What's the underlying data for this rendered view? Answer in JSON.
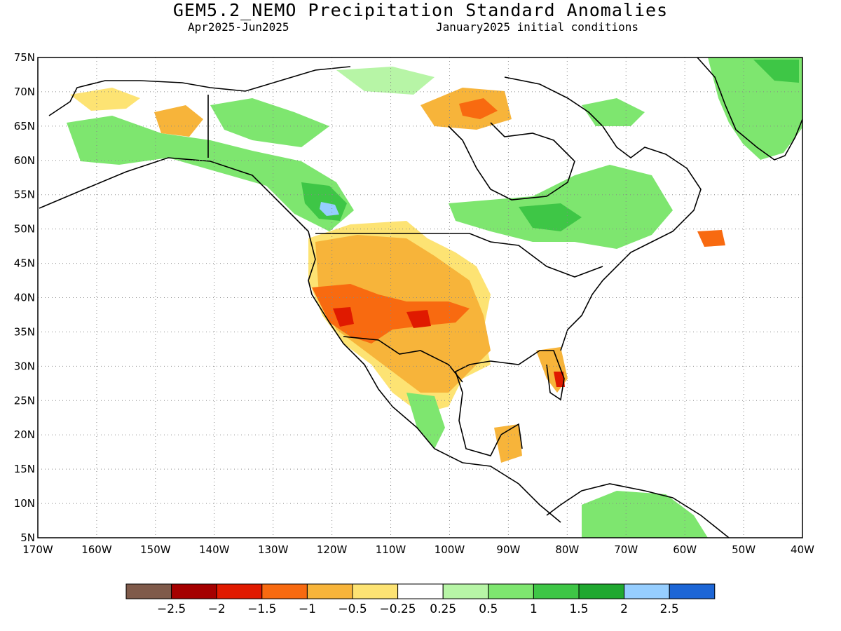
{
  "header": {
    "title": "GEM5.2_NEMO Precipitation Standard Anomalies",
    "period": "Apr2025-Jun2025",
    "init": "January2025 initial conditions"
  },
  "axes": {
    "lat_labels": [
      "75N",
      "70N",
      "65N",
      "60N",
      "55N",
      "50N",
      "45N",
      "40N",
      "35N",
      "30N",
      "25N",
      "20N",
      "15N",
      "10N",
      "5N"
    ],
    "lat_values": [
      75,
      70,
      65,
      60,
      55,
      50,
      45,
      40,
      35,
      30,
      25,
      20,
      15,
      10,
      5
    ],
    "lon_labels": [
      "170W",
      "160W",
      "150W",
      "140W",
      "130W",
      "120W",
      "110W",
      "100W",
      "90W",
      "80W",
      "70W",
      "60W",
      "50W",
      "40W"
    ],
    "lon_values": [
      -170,
      -160,
      -150,
      -140,
      -130,
      -120,
      -110,
      -100,
      -90,
      -80,
      -70,
      -60,
      -50,
      -40
    ],
    "lon_range": [
      -170,
      -40
    ],
    "lat_range": [
      5,
      75
    ],
    "grid": "dotted"
  },
  "colorbar": {
    "colors": [
      "#7f5a4a",
      "#a50000",
      "#e01a00",
      "#f86a10",
      "#f7b43a",
      "#fde373",
      "#ffffff",
      "#b7f5a6",
      "#7ee66f",
      "#3ec646",
      "#20a830",
      "#96ceff",
      "#1d66d6"
    ],
    "labels": [
      "-2.5",
      "-2",
      "-1.5",
      "-1",
      "-0.5",
      "-0.25",
      "0.25",
      "0.5",
      "1",
      "1.5",
      "2",
      "2.5"
    ]
  },
  "chart_data": {
    "type": "heatmap",
    "variable": "Precipitation Standard Anomalies",
    "regions": [
      {
        "lon": -112,
        "lat": 37,
        "value": -1.5
      },
      {
        "lon": -103,
        "lat": 37,
        "value": -1.5
      },
      {
        "lon": -118,
        "lat": 36,
        "value": -2
      },
      {
        "lon": -100,
        "lat": 33,
        "value": -0.5
      },
      {
        "lon": -108,
        "lat": 44,
        "value": -0.5
      },
      {
        "lon": -84,
        "lat": 28,
        "value": -1.5
      },
      {
        "lon": -95,
        "lat": 66,
        "value": -1.5
      },
      {
        "lon": -120,
        "lat": 56,
        "value": 0.5
      },
      {
        "lon": -120,
        "lat": 53,
        "value": 2
      },
      {
        "lon": -80,
        "lat": 53,
        "value": 1
      },
      {
        "lon": -40,
        "lat": 70,
        "value": 1
      },
      {
        "lon": -65,
        "lat": 7,
        "value": 0.5
      }
    ]
  }
}
